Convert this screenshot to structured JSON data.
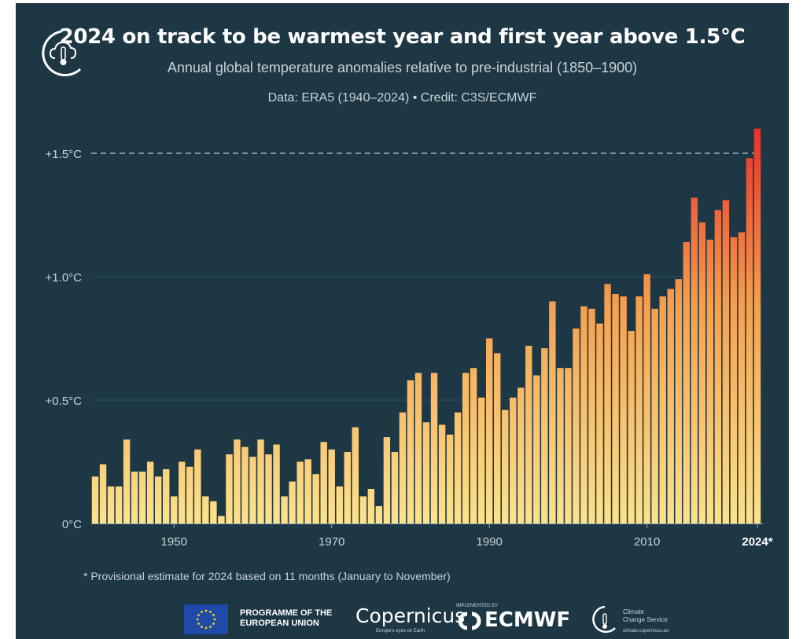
{
  "title": "2024 on track to be warmest year and first year above 1.5°C",
  "subtitle": "Annual global temperature anomalies relative to pre-industrial (1850–1900)",
  "credit": "Data: ERA5 (1940–2024) • Credit: C3S/ECMWF",
  "footnote": "* Provisional estimate for 2024 based on 11 months (January to November)",
  "footer": {
    "eu_line1": "PROGRAMME OF THE",
    "eu_line2": "EUROPEAN UNION",
    "copernicus": "Copernicus",
    "copernicus_sub": "Europe's eyes on Earth",
    "ecmwf_small": "IMPLEMENTED BY",
    "ecmwf": "ECMWF",
    "c3s_line1": "Climate",
    "c3s_line2": "Change Service",
    "c3s_url": "climate.copernicus.eu"
  },
  "icons": [
    "climate-thermometer-logo-icon",
    "eu-flag-icon",
    "ecmwf-logo-icon",
    "c3s-logo-icon"
  ],
  "colors": {
    "background": "#1d3745",
    "bar_low": "#fce28c",
    "bar_mid": "#f5a04e",
    "bar_high": "#e8322a",
    "threshold_line": "#9fb2bd"
  },
  "chart_data": {
    "type": "bar",
    "x": [
      1940,
      1941,
      1942,
      1943,
      1944,
      1945,
      1946,
      1947,
      1948,
      1949,
      1950,
      1951,
      1952,
      1953,
      1954,
      1955,
      1956,
      1957,
      1958,
      1959,
      1960,
      1961,
      1962,
      1963,
      1964,
      1965,
      1966,
      1967,
      1968,
      1969,
      1970,
      1971,
      1972,
      1973,
      1974,
      1975,
      1976,
      1977,
      1978,
      1979,
      1980,
      1981,
      1982,
      1983,
      1984,
      1985,
      1986,
      1987,
      1988,
      1989,
      1990,
      1991,
      1992,
      1993,
      1994,
      1995,
      1996,
      1997,
      1998,
      1999,
      2000,
      2001,
      2002,
      2003,
      2004,
      2005,
      2006,
      2007,
      2008,
      2009,
      2010,
      2011,
      2012,
      2013,
      2014,
      2015,
      2016,
      2017,
      2018,
      2019,
      2020,
      2021,
      2022,
      2023,
      2024
    ],
    "values": [
      0.19,
      0.24,
      0.15,
      0.15,
      0.34,
      0.21,
      0.21,
      0.25,
      0.19,
      0.22,
      0.11,
      0.25,
      0.23,
      0.3,
      0.11,
      0.09,
      0.03,
      0.28,
      0.34,
      0.31,
      0.27,
      0.34,
      0.28,
      0.32,
      0.11,
      0.17,
      0.25,
      0.26,
      0.2,
      0.33,
      0.3,
      0.15,
      0.29,
      0.39,
      0.11,
      0.14,
      0.07,
      0.35,
      0.29,
      0.45,
      0.58,
      0.61,
      0.41,
      0.61,
      0.4,
      0.36,
      0.45,
      0.61,
      0.63,
      0.51,
      0.75,
      0.69,
      0.46,
      0.51,
      0.55,
      0.72,
      0.6,
      0.71,
      0.9,
      0.63,
      0.63,
      0.79,
      0.88,
      0.87,
      0.81,
      0.97,
      0.93,
      0.92,
      0.78,
      0.92,
      1.01,
      0.87,
      0.92,
      0.95,
      0.99,
      1.14,
      1.32,
      1.22,
      1.15,
      1.27,
      1.31,
      1.16,
      1.18,
      1.48,
      1.6
    ],
    "x_tick_labels": [
      "1950",
      "1970",
      "1990",
      "2010",
      "2024*"
    ],
    "y_tick_labels": [
      "0°C",
      "+0.5°C",
      "+1.0°C",
      "+1.5°C"
    ],
    "y_ticks": [
      0,
      0.5,
      1.0,
      1.5
    ],
    "ylim": [
      0,
      1.6
    ],
    "xlim": [
      1940,
      2024
    ],
    "threshold": 1.5,
    "grid": true,
    "legend": false
  }
}
